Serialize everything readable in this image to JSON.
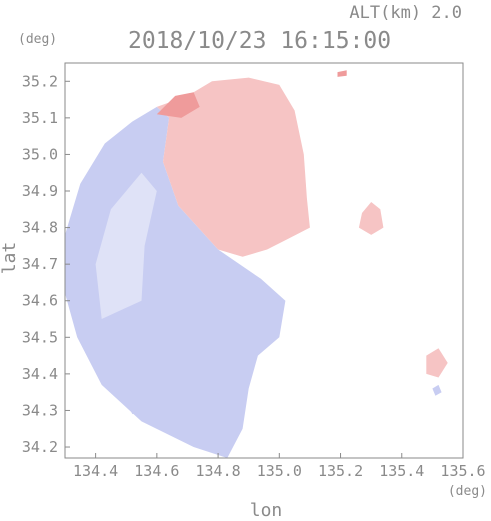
{
  "header": {
    "altitude_label": "ALT(km) 2.0",
    "timestamp": "2018/10/23 16:15:00"
  },
  "chart_data": {
    "type": "heatmap",
    "title": "2018/10/23 16:15:00",
    "subtitle": "ALT(km) 2.0",
    "xlabel": "lon",
    "ylabel": "lat",
    "x_unit": "(deg)",
    "y_unit": "(deg)",
    "xlim": [
      134.3,
      135.6
    ],
    "ylim": [
      34.17,
      35.25
    ],
    "x_ticks": [
      134.4,
      134.6,
      134.8,
      135.0,
      135.2,
      135.4,
      135.6
    ],
    "x_tick_labels": [
      "134.4",
      "134.6",
      "134.8",
      "135.0",
      "135.2",
      "135.4",
      "135.6"
    ],
    "y_ticks": [
      34.2,
      34.3,
      34.4,
      34.5,
      34.6,
      34.7,
      34.8,
      34.9,
      35.0,
      35.1,
      35.2
    ],
    "y_tick_labels": [
      "34.2",
      "34.3",
      "34.4",
      "34.5",
      "34.6",
      "34.7",
      "34.8",
      "34.9",
      "35.0",
      "35.1",
      "35.2"
    ],
    "grid": false,
    "colors": {
      "negative": "#c8cdf2",
      "negative_light": "#dfe2f7",
      "positive": "#f6c4c4",
      "positive_strong": "#ef9b9b",
      "axis": "#8a8a8a"
    },
    "regions": [
      {
        "name": "negative",
        "lonlat": [
          [
            134.83,
            34.17
          ],
          [
            134.72,
            34.2
          ],
          [
            134.55,
            34.27
          ],
          [
            134.42,
            34.37
          ],
          [
            134.34,
            34.5
          ],
          [
            134.3,
            34.62
          ],
          [
            134.3,
            34.78
          ],
          [
            134.35,
            34.92
          ],
          [
            134.43,
            35.03
          ],
          [
            134.52,
            35.09
          ],
          [
            134.6,
            35.13
          ],
          [
            134.64,
            35.1
          ],
          [
            134.62,
            34.98
          ],
          [
            134.67,
            34.86
          ],
          [
            134.8,
            34.74
          ],
          [
            134.94,
            34.66
          ],
          [
            135.02,
            34.6
          ],
          [
            135.0,
            34.5
          ],
          [
            134.93,
            34.45
          ],
          [
            134.9,
            34.36
          ],
          [
            134.88,
            34.25
          ]
        ]
      },
      {
        "name": "negative_light",
        "lonlat": [
          [
            134.42,
            34.55
          ],
          [
            134.4,
            34.7
          ],
          [
            134.45,
            34.85
          ],
          [
            134.55,
            34.95
          ],
          [
            134.6,
            34.9
          ],
          [
            134.56,
            34.75
          ],
          [
            134.55,
            34.6
          ]
        ]
      },
      {
        "name": "positive",
        "lonlat": [
          [
            134.6,
            35.13
          ],
          [
            134.7,
            35.16
          ],
          [
            134.78,
            35.2
          ],
          [
            134.9,
            35.21
          ],
          [
            135.0,
            35.19
          ],
          [
            135.05,
            35.12
          ],
          [
            135.08,
            35.0
          ],
          [
            135.09,
            34.88
          ],
          [
            135.1,
            34.8
          ],
          [
            135.03,
            34.77
          ],
          [
            134.96,
            34.74
          ],
          [
            134.88,
            34.72
          ],
          [
            134.8,
            34.74
          ],
          [
            134.67,
            34.86
          ],
          [
            134.62,
            34.98
          ],
          [
            134.64,
            35.1
          ]
        ]
      },
      {
        "name": "positive_strong",
        "lonlat": [
          [
            134.6,
            35.11
          ],
          [
            134.66,
            35.16
          ],
          [
            134.72,
            35.17
          ],
          [
            134.74,
            35.13
          ],
          [
            134.68,
            35.1
          ]
        ]
      },
      {
        "name": "positive",
        "lonlat": [
          [
            135.27,
            34.84
          ],
          [
            135.3,
            34.87
          ],
          [
            135.33,
            34.85
          ],
          [
            135.34,
            34.8
          ],
          [
            135.3,
            34.78
          ],
          [
            135.26,
            34.8
          ]
        ]
      },
      {
        "name": "positive",
        "lonlat": [
          [
            135.48,
            34.45
          ],
          [
            135.52,
            34.47
          ],
          [
            135.55,
            34.43
          ],
          [
            135.52,
            34.39
          ],
          [
            135.48,
            34.4
          ]
        ]
      },
      {
        "name": "negative",
        "lonlat": [
          [
            135.5,
            34.36
          ],
          [
            135.52,
            34.37
          ],
          [
            135.53,
            34.35
          ],
          [
            135.51,
            34.34
          ]
        ]
      },
      {
        "name": "positive_strong",
        "lonlat": [
          [
            135.19,
            35.225
          ],
          [
            135.22,
            35.23
          ],
          [
            135.22,
            35.215
          ],
          [
            135.19,
            35.212
          ]
        ]
      },
      {
        "name": "negative",
        "lonlat": [
          [
            134.5,
            34.32
          ],
          [
            134.56,
            34.33
          ],
          [
            134.57,
            34.3
          ],
          [
            134.52,
            34.29
          ]
        ]
      }
    ]
  }
}
